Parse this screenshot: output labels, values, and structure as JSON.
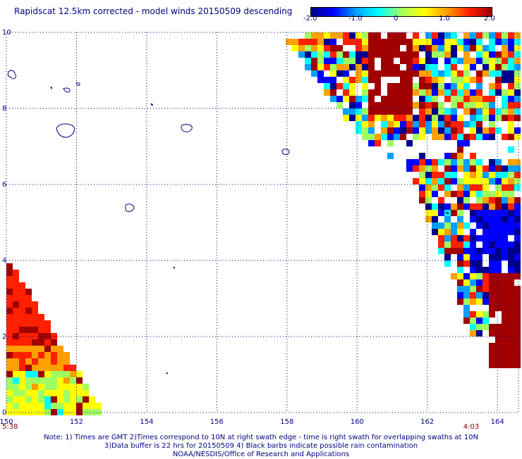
{
  "title": "Rapidscat 12.5km corrected - model winds 20150509 descending",
  "colorbar": {
    "ticks": [
      "-2.0",
      "-1.0",
      "0",
      "1.0",
      "2.0"
    ],
    "tick_values": [
      -2.0,
      -1.0,
      0.0,
      1.0,
      2.0
    ],
    "range": [
      -2.0,
      2.0
    ],
    "colors": [
      "#00008b",
      "#0000ff",
      "#00a0ff",
      "#00ffff",
      "#a0ff60",
      "#ffff00",
      "#ffa000",
      "#ff2000",
      "#a00000"
    ]
  },
  "map": {
    "lon_ticks": [
      "150",
      "152",
      "154",
      "156",
      "158",
      "160",
      "162",
      "164"
    ],
    "lon_values": [
      150,
      152,
      154,
      156,
      158,
      160,
      162,
      164
    ],
    "lat_ticks": [
      "0",
      "2",
      "4",
      "6",
      "8",
      "10"
    ],
    "lat_values": [
      0,
      2,
      4,
      6,
      8,
      10
    ],
    "lon_range": [
      150,
      164.6
    ],
    "lat_range": [
      0,
      10
    ],
    "grid": "dotted",
    "coastline_color": "#000080",
    "start_time": "5:38",
    "end_time": "4:03"
  },
  "note": {
    "line1": "Note: 1) Times are GMT 2)Times correspond to 10N at right swath edge - time is right swath for overlapping swaths at 10N",
    "line2": "3)Data buffer is 22 hrs for 20150509 4) Black barbs indicate possible rain contamination",
    "line3": "NOAA/NESDIS/Office of Research and Applications"
  }
}
